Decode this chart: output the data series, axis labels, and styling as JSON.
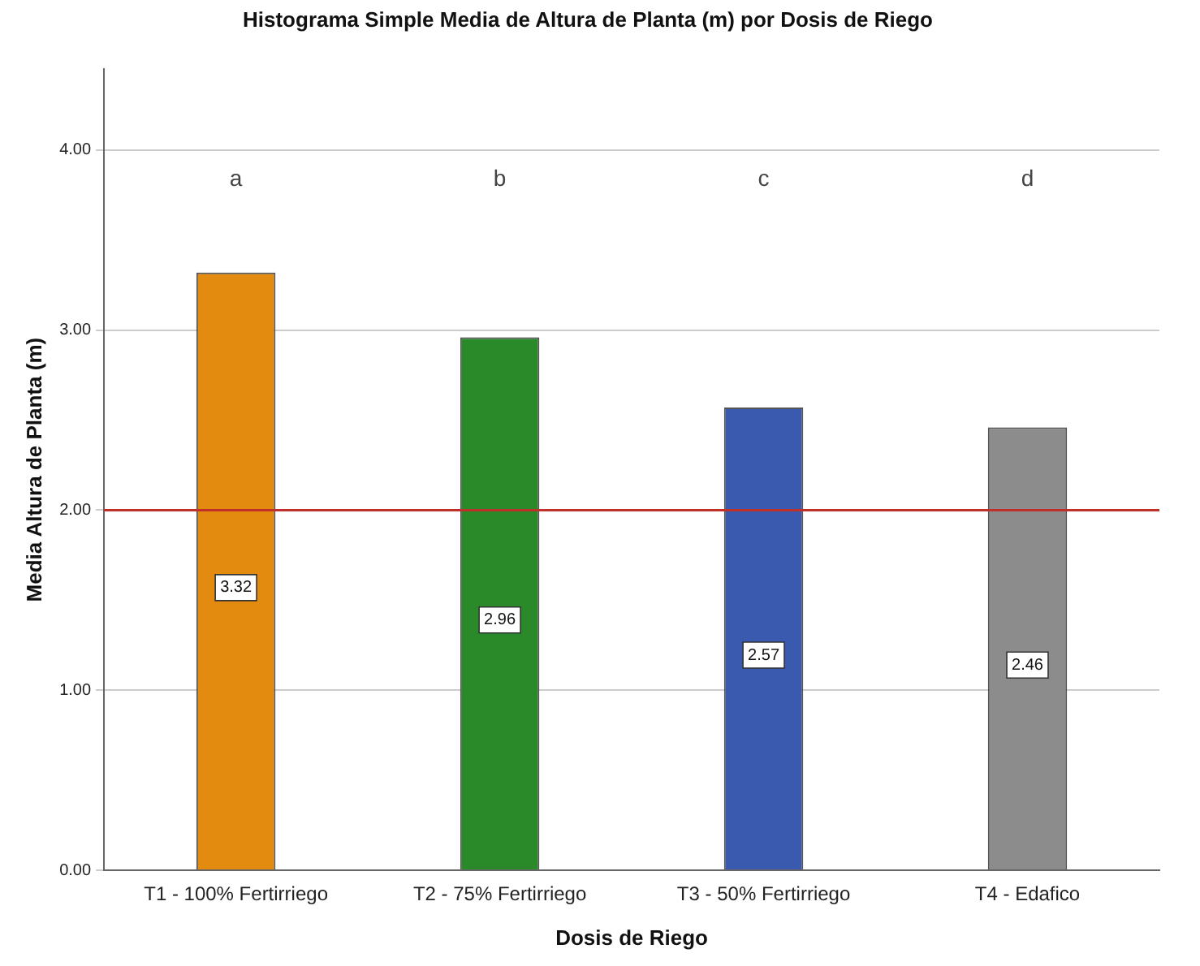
{
  "chart_data": {
    "type": "bar",
    "title": "Histograma Simple Media de Altura de Planta (m) por Dosis de Riego",
    "xlabel": "Dosis de Riego",
    "ylabel": "Media Altura de Planta (m)",
    "categories": [
      "T1 - 100% Fertirriego",
      "T2 - 75% Fertirriego",
      "T3 - 50% Fertirriego",
      "T4 - Edafico"
    ],
    "values": [
      3.32,
      2.96,
      2.57,
      2.46
    ],
    "colors": [
      "#e38b0e",
      "#2a8a2a",
      "#3a5ab0",
      "#8c8c8c"
    ],
    "ylim": [
      0,
      4.45
    ],
    "yticks": [
      {
        "value": 0,
        "label": "0.00"
      },
      {
        "value": 1,
        "label": "1.00"
      },
      {
        "value": 2,
        "label": "2.00"
      },
      {
        "value": 3,
        "label": "3.00"
      },
      {
        "value": 4,
        "label": "4.00"
      }
    ],
    "grid": "y",
    "data_labels": true,
    "legend": false,
    "ref_lines": [
      {
        "axis": "y",
        "value": 2,
        "color": "#c0302a"
      }
    ],
    "annotations": [
      "a",
      "b",
      "c",
      "d"
    ]
  }
}
